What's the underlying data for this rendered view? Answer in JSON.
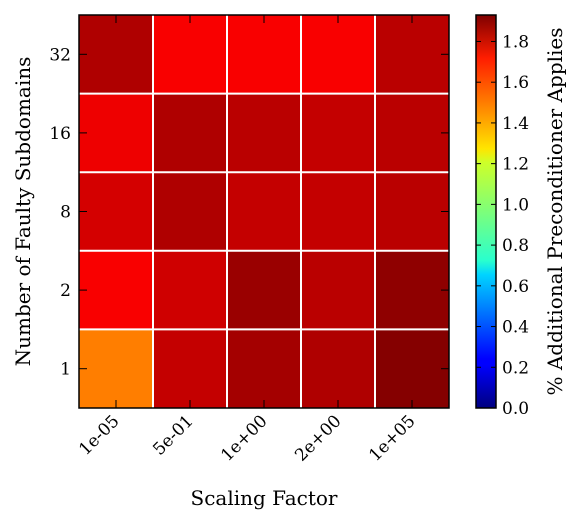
{
  "chart_data": {
    "type": "heatmap",
    "xlabel": "Scaling Factor",
    "ylabel": "Number of Faulty Subdomains",
    "x_categories": [
      "1e-05",
      "5e-01",
      "1e+00",
      "2e+00",
      "1e+05"
    ],
    "y_categories": [
      "32",
      "16",
      "8",
      "2",
      "1"
    ],
    "values": [
      [
        1.84,
        1.7,
        1.7,
        1.7,
        1.82
      ],
      [
        1.72,
        1.84,
        1.82,
        1.8,
        1.82
      ],
      [
        1.77,
        1.84,
        1.8,
        1.8,
        1.82
      ],
      [
        1.7,
        1.78,
        1.88,
        1.82,
        1.9
      ],
      [
        1.45,
        1.8,
        1.86,
        1.84,
        1.92
      ]
    ],
    "colorbar": {
      "label": "% Additional Preconditioner Applies",
      "colormap": "jet",
      "vmin": 0.0,
      "vmax": 1.93,
      "ticks": [
        "0.0",
        "0.2",
        "0.4",
        "0.6",
        "0.8",
        "1.0",
        "1.2",
        "1.4",
        "1.6",
        "1.8"
      ]
    },
    "grid": true,
    "grid_color": "#ffffff"
  }
}
